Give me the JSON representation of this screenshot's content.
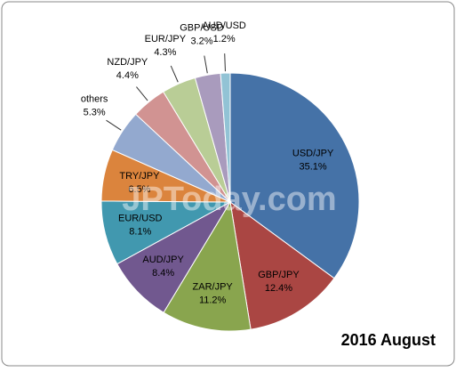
{
  "chart_data": {
    "type": "pie",
    "title": "2016 August",
    "watermark": "JPToday.com",
    "categories": [
      "USD/JPY",
      "GBP/JPY",
      "ZAR/JPY",
      "AUD/JPY",
      "EUR/USD",
      "TRY/JPY",
      "others",
      "NZD/JPY",
      "EUR/JPY",
      "GBP/USD",
      "AUD/USD"
    ],
    "values": [
      35.1,
      12.4,
      11.2,
      8.4,
      8.1,
      6.5,
      5.3,
      4.4,
      4.3,
      3.2,
      1.2
    ],
    "value_labels": [
      "35.1%",
      "12.4%",
      "11.2%",
      "8.4%",
      "8.1%",
      "6.5%",
      "5.3%",
      "4.4%",
      "4.3%",
      "3.2%",
      "1.2%"
    ],
    "colors": [
      "#4572a7",
      "#aa4643",
      "#89a54e",
      "#71588f",
      "#4198af",
      "#db843d",
      "#93a9cf",
      "#d19392",
      "#b9cd96",
      "#a99bbd",
      "#92c3d5"
    ]
  }
}
